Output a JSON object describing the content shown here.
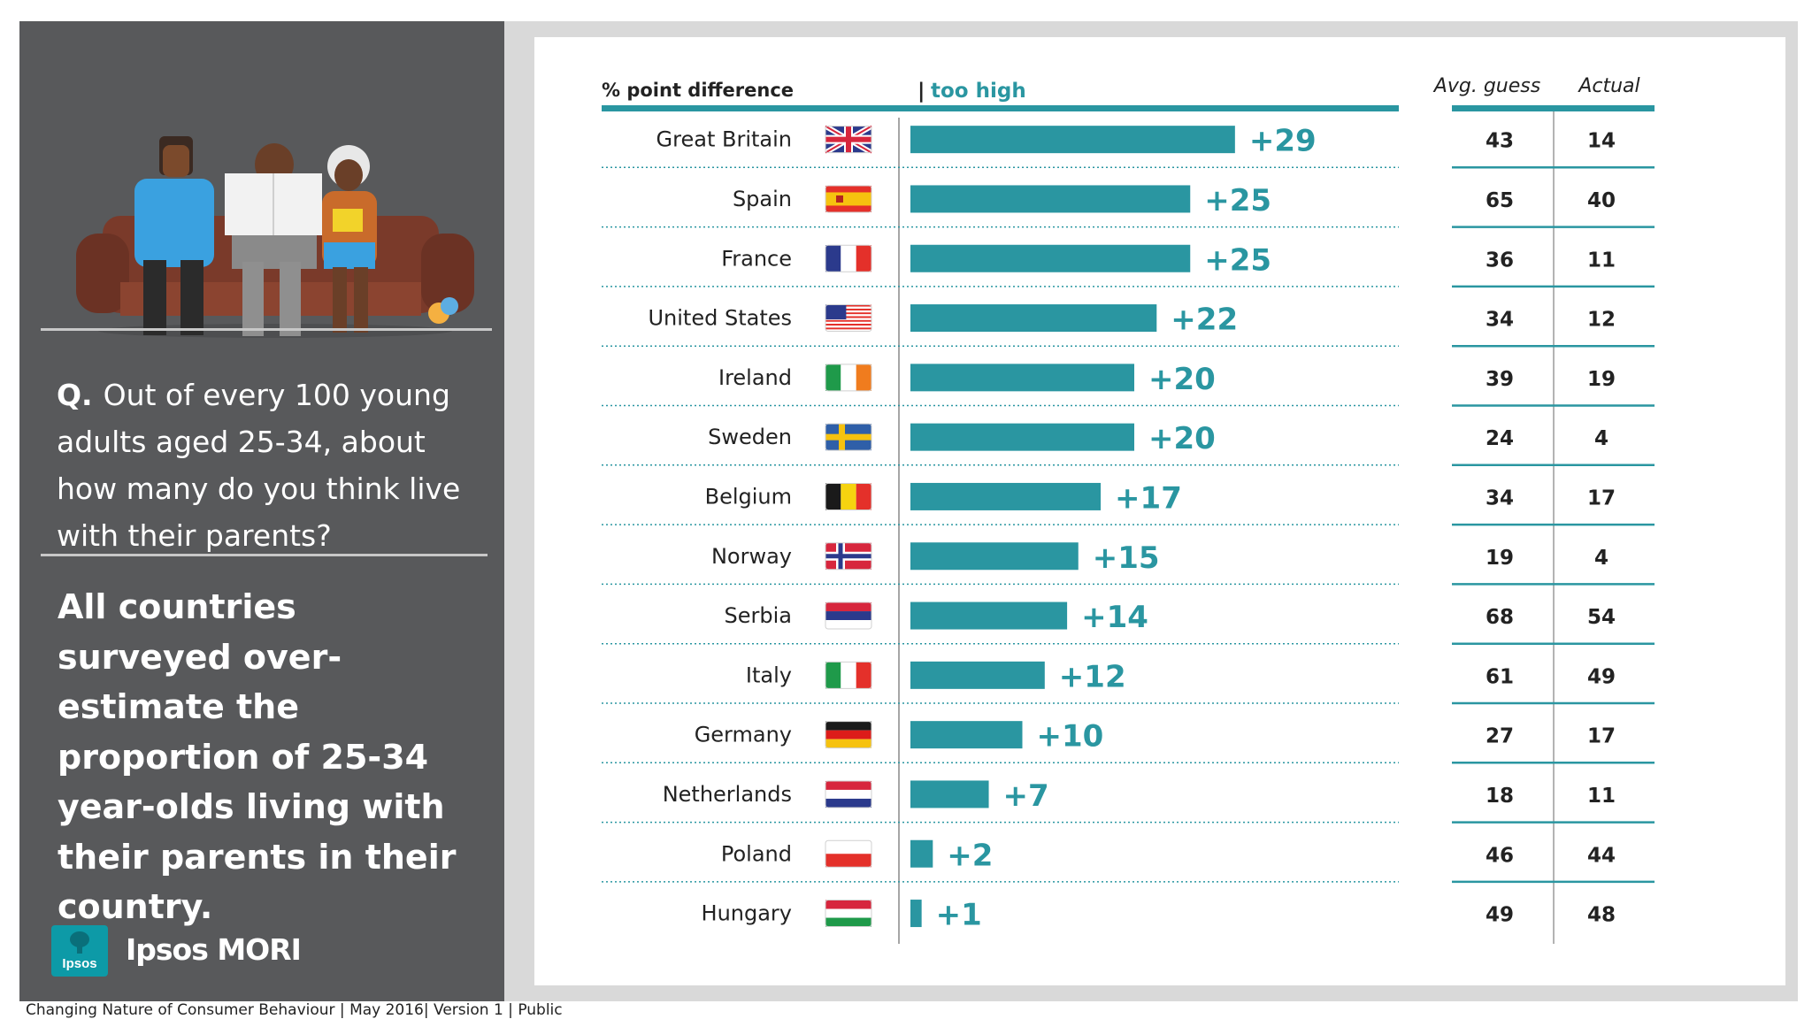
{
  "question": {
    "prefix": "Q.",
    "text": "Out of every 100 young adults aged 25-34, about how many do you think live with their parents?"
  },
  "finding": "All countries surveyed over-estimate the proportion of 25-34 year-olds living with their parents in their country.",
  "logo": {
    "badge": "Ipsos",
    "name": "Ipsos MORI"
  },
  "footer": {
    "title": "Changing Nature of Consumer Behaviour",
    "date": "May 2016",
    "version": "Version 1",
    "classification": "Public",
    "separator": "|"
  },
  "colors": {
    "accent": "#2a96a1",
    "left_panel": "#58595b",
    "frame": "#d9d9d9"
  },
  "chart_data": {
    "type": "bar",
    "orientation": "horizontal",
    "column_labels": {
      "difference": "% point difference",
      "direction": "too high",
      "avg_guess": "Avg. guess",
      "actual": "Actual"
    },
    "categories": [
      "Great Britain",
      "Spain",
      "France",
      "United States",
      "Ireland",
      "Sweden",
      "Belgium",
      "Norway",
      "Serbia",
      "Italy",
      "Germany",
      "Netherlands",
      "Poland",
      "Hungary"
    ],
    "values": [
      29,
      25,
      25,
      22,
      20,
      20,
      17,
      15,
      14,
      12,
      10,
      7,
      2,
      1
    ],
    "value_labels": [
      "+29",
      "+25",
      "+25",
      "+22",
      "+20",
      "+20",
      "+17",
      "+15",
      "+14",
      "+12",
      "+10",
      "+7",
      "+2",
      "+1"
    ],
    "avg_guess": [
      43,
      65,
      36,
      34,
      39,
      24,
      34,
      19,
      68,
      61,
      27,
      18,
      46,
      49
    ],
    "actual": [
      14,
      40,
      11,
      12,
      19,
      4,
      17,
      4,
      54,
      49,
      17,
      11,
      44,
      48
    ],
    "flags": [
      "gb-flag",
      "es-flag",
      "fr-flag",
      "us-flag",
      "ie-flag",
      "se-flag",
      "be-flag",
      "no-flag",
      "rs-flag",
      "it-flag",
      "de-flag",
      "nl-flag",
      "pl-flag",
      "hu-flag"
    ],
    "xlim": [
      0,
      30
    ],
    "bar_color": "#2a96a1"
  }
}
